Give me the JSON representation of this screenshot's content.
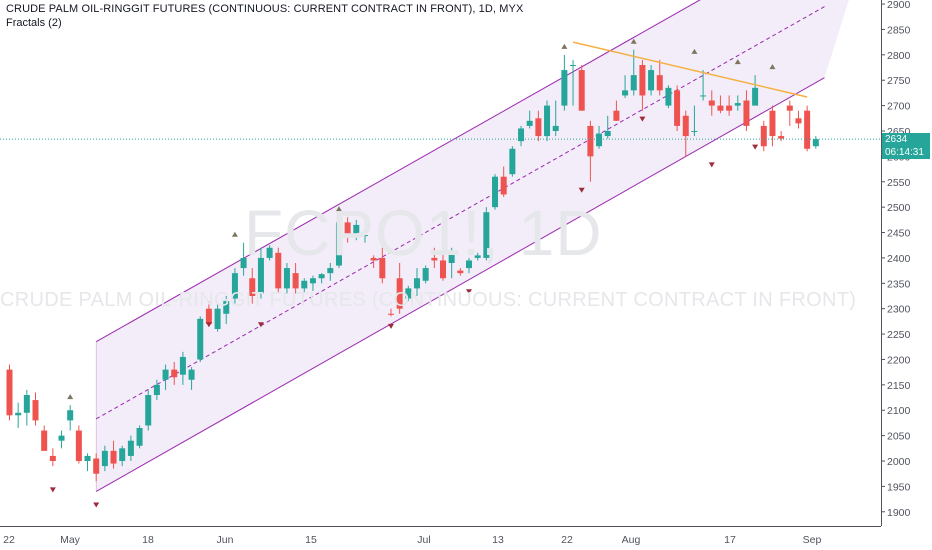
{
  "header": {
    "title": "CRUDE PALM OIL-RINGGIT FUTURES (CONTINUOUS: CURRENT CONTRACT IN FRONT), 1D, MYX",
    "indicator": "Fractals (2)"
  },
  "watermark": {
    "symbol": "FCPO1!, 1D",
    "description": "CRUDE PALM OIL-RINGGIT FUTURES (CONTINUOUS: CURRENT CONTRACT IN FRONT)"
  },
  "price_tags": {
    "last_price": "2634",
    "countdown": "06:14:31"
  },
  "colors": {
    "up": "#26a69a",
    "down": "#ef5350",
    "channel": "#9c27b0",
    "channel_fill": "#ede7f6",
    "resistance": "#f5b041",
    "last_price_line": "#26a69a",
    "countdown_bg": "#26a69a",
    "fractal_up": "#7d7560",
    "fractal_down": "#9e2a3a"
  },
  "chart_data": {
    "type": "candlestick",
    "y_axis": {
      "ticks": [
        1900,
        1950,
        2000,
        2050,
        2100,
        2150,
        2200,
        2250,
        2300,
        2350,
        2400,
        2450,
        2500,
        2550,
        2600,
        2650,
        2700,
        2750,
        2800,
        2850,
        2900
      ],
      "range": [
        1872,
        2908
      ]
    },
    "x_axis": {
      "ticks": [
        "22",
        "May",
        "18",
        "Jun",
        "15",
        "Jul",
        "13",
        "22",
        "Aug",
        "17",
        "Sep"
      ]
    },
    "last_price": 2634,
    "candles": [
      {
        "o": 2180,
        "h": 2190,
        "l": 2080,
        "c": 2090
      },
      {
        "o": 2090,
        "h": 2115,
        "l": 2065,
        "c": 2095
      },
      {
        "o": 2095,
        "h": 2140,
        "l": 2070,
        "c": 2130
      },
      {
        "o": 2120,
        "h": 2135,
        "l": 2070,
        "c": 2080
      },
      {
        "o": 2060,
        "h": 2070,
        "l": 2020,
        "c": 2020
      },
      {
        "o": 2010,
        "h": 2025,
        "l": 1990,
        "c": 2000
      },
      {
        "o": 2040,
        "h": 2060,
        "l": 2025,
        "c": 2050
      },
      {
        "o": 2080,
        "h": 2110,
        "l": 2060,
        "c": 2100
      },
      {
        "o": 2060,
        "h": 2070,
        "l": 1995,
        "c": 2000
      },
      {
        "o": 2000,
        "h": 2015,
        "l": 1980,
        "c": 2010
      },
      {
        "o": 2005,
        "h": 2015,
        "l": 1960,
        "c": 1975
      },
      {
        "o": 1990,
        "h": 2030,
        "l": 1980,
        "c": 2020
      },
      {
        "o": 2020,
        "h": 2040,
        "l": 1985,
        "c": 1995
      },
      {
        "o": 2000,
        "h": 2030,
        "l": 1990,
        "c": 2025
      },
      {
        "o": 2010,
        "h": 2050,
        "l": 2000,
        "c": 2040
      },
      {
        "o": 2030,
        "h": 2070,
        "l": 2025,
        "c": 2065
      },
      {
        "o": 2070,
        "h": 2140,
        "l": 2060,
        "c": 2130
      },
      {
        "o": 2130,
        "h": 2160,
        "l": 2120,
        "c": 2150
      },
      {
        "o": 2160,
        "h": 2190,
        "l": 2140,
        "c": 2180
      },
      {
        "o": 2180,
        "h": 2195,
        "l": 2150,
        "c": 2165
      },
      {
        "o": 2170,
        "h": 2215,
        "l": 2150,
        "c": 2205
      },
      {
        "o": 2160,
        "h": 2185,
        "l": 2140,
        "c": 2180
      },
      {
        "o": 2200,
        "h": 2285,
        "l": 2195,
        "c": 2280
      },
      {
        "o": 2300,
        "h": 2315,
        "l": 2265,
        "c": 2270
      },
      {
        "o": 2260,
        "h": 2310,
        "l": 2255,
        "c": 2300
      },
      {
        "o": 2290,
        "h": 2325,
        "l": 2270,
        "c": 2315
      },
      {
        "o": 2320,
        "h": 2380,
        "l": 2310,
        "c": 2370
      },
      {
        "o": 2380,
        "h": 2430,
        "l": 2365,
        "c": 2400
      },
      {
        "o": 2360,
        "h": 2380,
        "l": 2310,
        "c": 2325
      },
      {
        "o": 2330,
        "h": 2420,
        "l": 2320,
        "c": 2400
      },
      {
        "o": 2400,
        "h": 2425,
        "l": 2395,
        "c": 2420
      },
      {
        "o": 2410,
        "h": 2420,
        "l": 2330,
        "c": 2340
      },
      {
        "o": 2340,
        "h": 2390,
        "l": 2330,
        "c": 2380
      },
      {
        "o": 2370,
        "h": 2390,
        "l": 2330,
        "c": 2340
      },
      {
        "o": 2340,
        "h": 2360,
        "l": 2330,
        "c": 2355
      },
      {
        "o": 2350,
        "h": 2365,
        "l": 2335,
        "c": 2360
      },
      {
        "o": 2360,
        "h": 2370,
        "l": 2350,
        "c": 2368
      },
      {
        "o": 2370,
        "h": 2390,
        "l": 2355,
        "c": 2380
      },
      {
        "o": 2385,
        "h": 2480,
        "l": 2380,
        "c": 2470
      },
      {
        "o": 2470,
        "h": 2480,
        "l": 2430,
        "c": 2440
      },
      {
        "o": 2440,
        "h": 2475,
        "l": 2435,
        "c": 2465
      },
      {
        "o": 2445,
        "h": 2450,
        "l": 2430,
        "c": 2445
      },
      {
        "o": 2400,
        "h": 2405,
        "l": 2380,
        "c": 2395
      },
      {
        "o": 2400,
        "h": 2420,
        "l": 2350,
        "c": 2360
      },
      {
        "o": 2290,
        "h": 2300,
        "l": 2285,
        "c": 2288
      },
      {
        "o": 2360,
        "h": 2390,
        "l": 2290,
        "c": 2300
      },
      {
        "o": 2320,
        "h": 2345,
        "l": 2315,
        "c": 2340
      },
      {
        "o": 2340,
        "h": 2380,
        "l": 2325,
        "c": 2360
      },
      {
        "o": 2355,
        "h": 2385,
        "l": 2350,
        "c": 2380
      },
      {
        "o": 2400,
        "h": 2420,
        "l": 2380,
        "c": 2395
      },
      {
        "o": 2395,
        "h": 2410,
        "l": 2355,
        "c": 2360
      },
      {
        "o": 2390,
        "h": 2420,
        "l": 2360,
        "c": 2410
      },
      {
        "o": 2375,
        "h": 2380,
        "l": 2365,
        "c": 2370
      },
      {
        "o": 2380,
        "h": 2400,
        "l": 2370,
        "c": 2395
      },
      {
        "o": 2400,
        "h": 2410,
        "l": 2395,
        "c": 2405
      },
      {
        "o": 2400,
        "h": 2500,
        "l": 2395,
        "c": 2490
      },
      {
        "o": 2500,
        "h": 2565,
        "l": 2495,
        "c": 2560
      },
      {
        "o": 2560,
        "h": 2580,
        "l": 2520,
        "c": 2525
      },
      {
        "o": 2565,
        "h": 2620,
        "l": 2560,
        "c": 2615
      },
      {
        "o": 2630,
        "h": 2660,
        "l": 2620,
        "c": 2655
      },
      {
        "o": 2660,
        "h": 2690,
        "l": 2655,
        "c": 2670
      },
      {
        "o": 2675,
        "h": 2690,
        "l": 2630,
        "c": 2640
      },
      {
        "o": 2640,
        "h": 2710,
        "l": 2630,
        "c": 2700
      },
      {
        "o": 2650,
        "h": 2710,
        "l": 2640,
        "c": 2660
      },
      {
        "o": 2700,
        "h": 2800,
        "l": 2690,
        "c": 2770
      },
      {
        "o": 2780,
        "h": 2790,
        "l": 2700,
        "c": 2780
      },
      {
        "o": 2770,
        "h": 2780,
        "l": 2690,
        "c": 2690
      },
      {
        "o": 2660,
        "h": 2670,
        "l": 2550,
        "c": 2600
      },
      {
        "o": 2620,
        "h": 2660,
        "l": 2615,
        "c": 2645
      },
      {
        "o": 2640,
        "h": 2680,
        "l": 2635,
        "c": 2650
      },
      {
        "o": 2690,
        "h": 2710,
        "l": 2670,
        "c": 2670
      },
      {
        "o": 2720,
        "h": 2760,
        "l": 2715,
        "c": 2730
      },
      {
        "o": 2730,
        "h": 2810,
        "l": 2720,
        "c": 2760
      },
      {
        "o": 2780,
        "h": 2790,
        "l": 2690,
        "c": 2720
      },
      {
        "o": 2730,
        "h": 2780,
        "l": 2720,
        "c": 2770
      },
      {
        "o": 2760,
        "h": 2790,
        "l": 2720,
        "c": 2730
      },
      {
        "o": 2700,
        "h": 2740,
        "l": 2695,
        "c": 2735
      },
      {
        "o": 2730,
        "h": 2740,
        "l": 2650,
        "c": 2660
      },
      {
        "o": 2680,
        "h": 2690,
        "l": 2600,
        "c": 2640
      },
      {
        "o": 2650,
        "h": 2700,
        "l": 2640,
        "c": 2650
      },
      {
        "o": 2720,
        "h": 2770,
        "l": 2710,
        "c": 2720
      },
      {
        "o": 2710,
        "h": 2730,
        "l": 2680,
        "c": 2700
      },
      {
        "o": 2700,
        "h": 2720,
        "l": 2685,
        "c": 2690
      },
      {
        "o": 2700,
        "h": 2720,
        "l": 2680,
        "c": 2690
      },
      {
        "o": 2700,
        "h": 2720,
        "l": 2690,
        "c": 2705
      },
      {
        "o": 2710,
        "h": 2730,
        "l": 2650,
        "c": 2660
      },
      {
        "o": 2700,
        "h": 2760,
        "l": 2700,
        "c": 2735
      },
      {
        "o": 2660,
        "h": 2670,
        "l": 2610,
        "c": 2620
      },
      {
        "o": 2690,
        "h": 2700,
        "l": 2620,
        "c": 2640
      },
      {
        "o": 2640,
        "h": 2650,
        "l": 2630,
        "c": 2635
      },
      {
        "o": 2700,
        "h": 2710,
        "l": 2660,
        "c": 2690
      },
      {
        "o": 2675,
        "h": 2690,
        "l": 2655,
        "c": 2665
      },
      {
        "o": 2690,
        "h": 2700,
        "l": 2610,
        "c": 2615
      },
      {
        "o": 2620,
        "h": 2640,
        "l": 2615,
        "c": 2634
      }
    ],
    "fractals_up": [
      {
        "bar": 7,
        "price": 2110
      },
      {
        "bar": 26,
        "price": 2430
      },
      {
        "bar": 38,
        "price": 2480
      },
      {
        "bar": 64,
        "price": 2800
      },
      {
        "bar": 72,
        "price": 2810
      },
      {
        "bar": 79,
        "price": 2790
      },
      {
        "bar": 84,
        "price": 2770
      },
      {
        "bar": 88,
        "price": 2760
      }
    ],
    "fractals_down": [
      {
        "bar": 5,
        "price": 1960
      },
      {
        "bar": 10,
        "price": 1930
      },
      {
        "bar": 23,
        "price": 2285
      },
      {
        "bar": 29,
        "price": 2285
      },
      {
        "bar": 44,
        "price": 2282
      },
      {
        "bar": 53,
        "price": 2350
      },
      {
        "bar": 66,
        "price": 2550
      },
      {
        "bar": 73,
        "price": 2690
      },
      {
        "bar": 81,
        "price": 2600
      },
      {
        "bar": 86,
        "price": 2635
      }
    ],
    "channel": {
      "upper": [
        {
          "bar": 10,
          "price": 2235
        },
        {
          "bar": 85,
          "price": 2960
        }
      ],
      "middle": [
        {
          "bar": 10,
          "price": 2083
        },
        {
          "bar": 94,
          "price": 2895
        }
      ],
      "lower": [
        {
          "bar": 10,
          "price": 1940
        },
        {
          "bar": 94,
          "price": 2755
        }
      ]
    },
    "resistance_line": [
      {
        "bar": 65,
        "price": 2825
      },
      {
        "bar": 92,
        "price": 2717
      }
    ],
    "grid": false
  }
}
